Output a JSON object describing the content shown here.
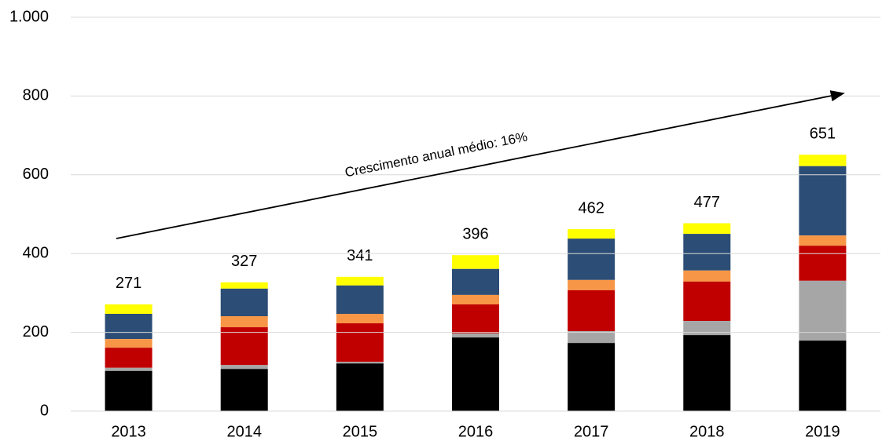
{
  "chart_data": {
    "type": "stacked_bar",
    "annotation": "Crescimento anual médio: 16%",
    "categories": [
      "2013",
      "2014",
      "2015",
      "2016",
      "2017",
      "2018",
      "2019"
    ],
    "series": [
      {
        "color": "#000000",
        "values": [
          102,
          107,
          121,
          187,
          173,
          193,
          179
        ]
      },
      {
        "color": "#a6a6a6",
        "values": [
          8,
          10,
          4,
          10,
          30,
          36,
          152
        ]
      },
      {
        "color": "#c00000",
        "values": [
          51,
          96,
          98,
          74,
          104,
          100,
          89
        ]
      },
      {
        "color": "#f79646",
        "values": [
          22,
          28,
          24,
          24,
          26,
          28,
          26
        ]
      },
      {
        "color": "#2c4d75",
        "values": [
          64,
          70,
          72,
          66,
          105,
          93,
          176
        ]
      },
      {
        "color": "#ffff00",
        "values": [
          24,
          16,
          22,
          35,
          24,
          27,
          29
        ]
      }
    ],
    "totals": [
      271,
      327,
      341,
      396,
      462,
      477,
      651
    ],
    "ylim": [
      0,
      1000
    ],
    "yticks": [
      0,
      200,
      400,
      600,
      800,
      {
        "value": 1000,
        "label": "1.000"
      }
    ],
    "grid": true
  }
}
